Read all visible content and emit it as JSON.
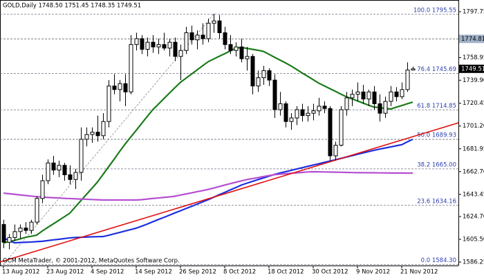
{
  "chart_data": {
    "type": "candlestick",
    "title": "GOLD,Daily 1748.50 1751.45 1748.35 1749.51",
    "footer": "GCM MetaTrader, © 2001-2012, MetaQuotes Software Corp.",
    "categories": [
      "13 Aug 2012",
      null,
      null,
      null,
      null,
      null,
      null,
      null,
      "23 Aug 2012",
      null,
      null,
      null,
      null,
      null,
      null,
      null,
      "4 Sep 2012",
      null,
      null,
      null,
      null,
      null,
      null,
      null,
      "14 Sep 2012",
      null,
      null,
      null,
      null,
      null,
      null,
      null,
      "26 Sep 2012",
      null,
      null,
      null,
      null,
      null,
      null,
      null,
      "8 Oct 2012",
      null,
      null,
      null,
      null,
      null,
      null,
      null,
      "18 Oct 2012",
      null,
      null,
      null,
      null,
      null,
      null,
      null,
      "30 Oct 2012",
      null,
      null,
      null,
      null,
      null,
      null,
      null,
      "9 Nov 2012",
      null,
      null,
      null,
      null,
      null,
      null,
      null,
      "21 Nov 2012",
      null,
      null
    ],
    "open": [
      1618,
      1603,
      1607,
      1612,
      1615,
      1613,
      1620,
      1640,
      1655,
      1670,
      1664,
      1668,
      1660,
      1656,
      1662,
      1690,
      1694,
      1696,
      1693,
      1705,
      1735,
      1732,
      1737,
      1730,
      1770,
      1775,
      1766,
      1772,
      1768,
      1770,
      1767,
      1772,
      1760,
      1765,
      1780,
      1774,
      1778,
      1775,
      1788,
      1790,
      1780,
      1770,
      1765,
      1768,
      1758,
      1760,
      1735,
      1742,
      1748,
      1740,
      1715,
      1720,
      1705,
      1708,
      1715,
      1710,
      1712,
      1714,
      1718,
      1716,
      1676,
      1685,
      1715,
      1725,
      1728,
      1730,
      1724,
      1730,
      1720,
      1712,
      1722,
      1730,
      1726,
      1732,
      1748.5
    ],
    "high": [
      1622,
      1610,
      1618,
      1618,
      1620,
      1622,
      1642,
      1660,
      1673,
      1676,
      1672,
      1670,
      1668,
      1665,
      1700,
      1700,
      1700,
      1710,
      1712,
      1740,
      1745,
      1740,
      1745,
      1778,
      1780,
      1778,
      1776,
      1778,
      1775,
      1780,
      1775,
      1776,
      1770,
      1785,
      1786,
      1782,
      1788,
      1792,
      1796,
      1795,
      1785,
      1778,
      1772,
      1775,
      1768,
      1762,
      1748,
      1752,
      1750,
      1745,
      1730,
      1722,
      1712,
      1718,
      1720,
      1718,
      1720,
      1725,
      1722,
      1718,
      1688,
      1718,
      1730,
      1732,
      1738,
      1736,
      1732,
      1735,
      1728,
      1726,
      1735,
      1734,
      1738,
      1755,
      1751.45
    ],
    "low": [
      1598,
      1597,
      1604,
      1606,
      1610,
      1610,
      1618,
      1636,
      1652,
      1660,
      1658,
      1655,
      1652,
      1648,
      1655,
      1684,
      1687,
      1688,
      1690,
      1700,
      1728,
      1722,
      1718,
      1728,
      1765,
      1762,
      1760,
      1763,
      1762,
      1765,
      1760,
      1756,
      1740,
      1762,
      1770,
      1766,
      1770,
      1772,
      1780,
      1775,
      1766,
      1762,
      1760,
      1755,
      1748,
      1728,
      1730,
      1736,
      1735,
      1708,
      1710,
      1700,
      1698,
      1702,
      1705,
      1705,
      1706,
      1710,
      1712,
      1672,
      1672,
      1684,
      1710,
      1718,
      1722,
      1720,
      1718,
      1715,
      1705,
      1708,
      1718,
      1722,
      1724,
      1730,
      1748.35
    ],
    "close": [
      1603,
      1607,
      1612,
      1615,
      1613,
      1620,
      1640,
      1655,
      1670,
      1664,
      1668,
      1660,
      1656,
      1662,
      1690,
      1694,
      1696,
      1693,
      1705,
      1735,
      1732,
      1737,
      1730,
      1770,
      1775,
      1766,
      1772,
      1768,
      1770,
      1767,
      1772,
      1760,
      1765,
      1780,
      1774,
      1778,
      1775,
      1788,
      1790,
      1780,
      1770,
      1765,
      1768,
      1758,
      1760,
      1735,
      1742,
      1748,
      1740,
      1715,
      1720,
      1705,
      1708,
      1715,
      1710,
      1712,
      1714,
      1718,
      1716,
      1676,
      1685,
      1715,
      1725,
      1728,
      1730,
      1724,
      1730,
      1720,
      1712,
      1722,
      1730,
      1726,
      1732,
      1748.5,
      1749.51
    ],
    "moving_averages": [
      {
        "color": "#1a7a1a",
        "values": [
          1602.5,
          1603.4,
          1604.6,
          1605.8,
          1607.2,
          1608.1,
          1609.0,
          1612.5,
          1615.5,
          1618.5,
          1621.5,
          1624.5,
          1627.6,
          1632.9,
          1638.2,
          1643.4,
          1648.6,
          1653.9,
          1660.3,
          1666.7,
          1673.1,
          1679.7,
          1686.0,
          1691.8,
          1697.6,
          1703.5,
          1709.3,
          1715.0,
          1719.6,
          1724.3,
          1729.0,
          1733.6,
          1738.1,
          1741.6,
          1745.1,
          1748.6,
          1752.1,
          1755.5,
          1757.8,
          1760.1,
          1762.3,
          1764.6,
          1766.9,
          1767.6,
          1766.8,
          1766.0,
          1765.2,
          1764.2,
          1761.8,
          1759.3,
          1756.9,
          1754.5,
          1751.9,
          1749.0,
          1746.0,
          1743.2,
          1740.3,
          1737.4,
          1735.1,
          1732.8,
          1730.5,
          1728.1,
          1725.9,
          1724.1,
          1722.4,
          1720.6,
          1718.8,
          1717.2,
          1716.7,
          1716.1,
          1715.6,
          1717.1,
          1718.5,
          1720.0,
          1721.4
        ]
      },
      {
        "color": "#1c2ee0",
        "values": [
          1606.7,
          1604.5,
          1602.5,
          1602.8,
          1603.0,
          1603.2,
          1603.5,
          1603.8,
          1604.4,
          1605.0,
          1605.5,
          1606.1,
          1606.7,
          1607.0,
          1607.2,
          1607.4,
          1607.6,
          1607.7,
          1607.8,
          1608.9,
          1610.1,
          1611.3,
          1612.5,
          1613.7,
          1614.9,
          1616.6,
          1618.4,
          1620.3,
          1622.2,
          1624.0,
          1625.9,
          1627.8,
          1629.6,
          1631.5,
          1633.3,
          1635.2,
          1637.1,
          1638.9,
          1641.0,
          1643.1,
          1645.1,
          1647.2,
          1649.2,
          1651.3,
          1652.9,
          1654.4,
          1655.9,
          1657.3,
          1658.8,
          1660.3,
          1661.5,
          1662.6,
          1663.7,
          1664.9,
          1666.0,
          1667.1,
          1668.2,
          1669.3,
          1670.5,
          1671.6,
          1672.7,
          1673.8,
          1675.0,
          1676.1,
          1677.3,
          1678.4,
          1679.6,
          1680.7,
          1681.7,
          1682.6,
          1683.5,
          1684.5,
          1685.4,
          1687.8,
          1690.0
        ]
      },
      {
        "color": "#b44ed0",
        "values": [
          1644.5,
          1644.0,
          1643.5,
          1643.0,
          1642.5,
          1642.0,
          1641.5,
          1641.2,
          1640.9,
          1640.6,
          1640.4,
          1640.1,
          1639.9,
          1639.7,
          1639.5,
          1639.3,
          1639.1,
          1638.9,
          1638.7,
          1638.7,
          1638.7,
          1638.7,
          1638.7,
          1638.7,
          1638.7,
          1639.0,
          1639.5,
          1640.0,
          1640.4,
          1640.9,
          1641.3,
          1641.9,
          1642.9,
          1643.8,
          1644.7,
          1645.7,
          1646.6,
          1647.6,
          1648.8,
          1650.0,
          1651.3,
          1652.5,
          1653.7,
          1654.8,
          1655.9,
          1656.8,
          1657.6,
          1658.5,
          1659.3,
          1660.1,
          1660.5,
          1660.9,
          1661.3,
          1661.6,
          1662.0,
          1662.4,
          1662.6,
          1662.5,
          1662.4,
          1662.3,
          1662.2,
          1662.1,
          1662.0,
          1661.9,
          1661.8,
          1661.8,
          1661.7,
          1661.7,
          1661.6,
          1661.6,
          1661.5,
          1661.5,
          1661.5,
          1661.4,
          1661.4
        ]
      }
    ],
    "fibonacci": [
      {
        "value": 1795.55,
        "label": "100.0 1795.55"
      },
      {
        "value": 1745.69,
        "label": "76.4 1745.69"
      },
      {
        "value": 1714.85,
        "label": "61.8 1714.85"
      },
      {
        "value": 1689.93,
        "label": "50.0 1689.93"
      },
      {
        "value": 1665.0,
        "label": "38.2 1665.00"
      },
      {
        "value": 1634.16,
        "label": "23.6 1634.16"
      },
      {
        "value": 1584.3,
        "label": "0.0 1584.30"
      }
    ],
    "hline": 1774.81,
    "trendline": {
      "color": "#e01010",
      "values": [
        1586.3,
        1703.9
      ]
    },
    "ylim": [
      1583.35,
      1807.65
    ],
    "yticks": [
      1797.75,
      1758.95,
      {
        "value": 1739.9,
        "label": "1739.90"
      },
      1720.45,
      {
        "value": 1701.2,
        "label": "1701.20"
      },
      1681.95,
      {
        "value": 1662.7,
        "label": "1662.70"
      },
      1643.45,
      {
        "value": 1624.7,
        "label": "1624.70"
      },
      {
        "value": 1605.5,
        "label": "1605.50"
      },
      1586.25
    ]
  }
}
